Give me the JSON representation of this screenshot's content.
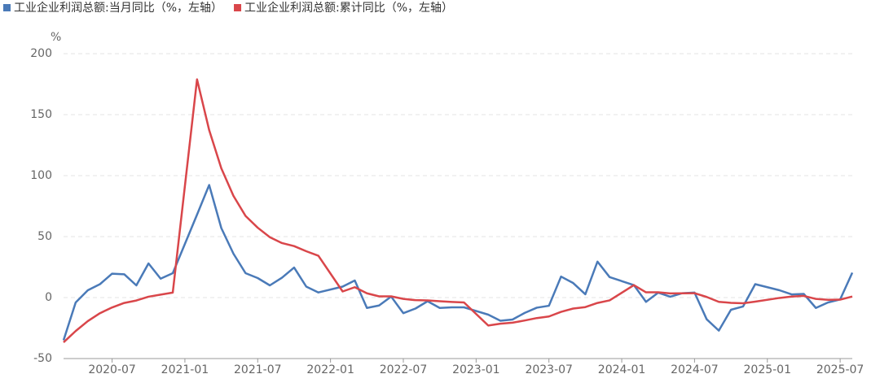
{
  "chart_data": {
    "type": "line",
    "y_unit_label": "%",
    "x": [
      "2020-03",
      "2020-04",
      "2020-05",
      "2020-06",
      "2020-07",
      "2020-08",
      "2020-09",
      "2020-10",
      "2020-11",
      "2020-12",
      "2021-02",
      "2021-03",
      "2021-04",
      "2021-05",
      "2021-06",
      "2021-07",
      "2021-08",
      "2021-09",
      "2021-10",
      "2021-11",
      "2021-12",
      "2022-02",
      "2022-03",
      "2022-04",
      "2022-05",
      "2022-06",
      "2022-07",
      "2022-08",
      "2022-09",
      "2022-10",
      "2022-11",
      "2022-12",
      "2023-02",
      "2023-03",
      "2023-04",
      "2023-05",
      "2023-06",
      "2023-07",
      "2023-08",
      "2023-09",
      "2023-10",
      "2023-11",
      "2023-12",
      "2024-02",
      "2024-03",
      "2024-04",
      "2024-05",
      "2024-06",
      "2024-07",
      "2024-08",
      "2024-09",
      "2024-10",
      "2024-11",
      "2024-12",
      "2025-02",
      "2025-03",
      "2025-04",
      "2025-05",
      "2025-06",
      "2025-07",
      "2025-08"
    ],
    "series": [
      {
        "name": "工业企业利润总额:当月同比（%，左轴）",
        "color": "#4a7ab8",
        "values": [
          -35,
          -4,
          6,
          11,
          19.6,
          19.1,
          10,
          28,
          15.5,
          20,
          68,
          92.3,
          57,
          36,
          20,
          16,
          10,
          16.3,
          24.6,
          9,
          4.2,
          9,
          14,
          -8.5,
          -6.5,
          0.8,
          -12.8,
          -9,
          -3,
          -8.5,
          -8,
          -8,
          -14,
          -19,
          -18,
          -12.6,
          -8.3,
          -6.7,
          17.2,
          11.9,
          2.7,
          29.5,
          16.8,
          10.2,
          -3.5,
          4,
          0.7,
          3.6,
          4.1,
          -17.8,
          -27.1,
          -10,
          -7.3,
          11,
          6,
          2.6,
          3,
          -8.5,
          -4,
          -1.5,
          20.4
        ]
      },
      {
        "name": "工业企业利润总额:累计同比（%，左轴）",
        "color": "#d9464a",
        "values": [
          -36.7,
          -27.4,
          -19.3,
          -12.8,
          -8.1,
          -4.4,
          -2.4,
          0.7,
          2.4,
          4.1,
          178.9,
          137.3,
          106,
          83.4,
          66.9,
          57.3,
          49.5,
          44.7,
          42.2,
          38,
          34.3,
          5,
          8.5,
          3.5,
          1,
          1,
          -1.1,
          -2.1,
          -2.3,
          -3,
          -3.6,
          -4,
          -22.9,
          -21.4,
          -20.6,
          -18.8,
          -16.8,
          -15.5,
          -11.7,
          -9,
          -7.8,
          -4.4,
          -2.3,
          10.2,
          4.3,
          4.3,
          3.4,
          3.5,
          3.6,
          0.5,
          -3.5,
          -4.3,
          -4.7,
          -3.3,
          -0.3,
          0.8,
          1.4,
          -1.1,
          -1.8,
          -1.7,
          0.9
        ]
      }
    ],
    "xlim": [
      "2020-03",
      "2025-08"
    ],
    "xticks": [
      "2020-07",
      "2021-01",
      "2021-07",
      "2022-01",
      "2022-07",
      "2023-01",
      "2023-07",
      "2024-01",
      "2024-07",
      "2025-01",
      "2025-07"
    ],
    "ylim": [
      -50,
      200
    ],
    "yticks": [
      -50,
      0,
      50,
      100,
      150,
      200
    ],
    "grid": true
  }
}
